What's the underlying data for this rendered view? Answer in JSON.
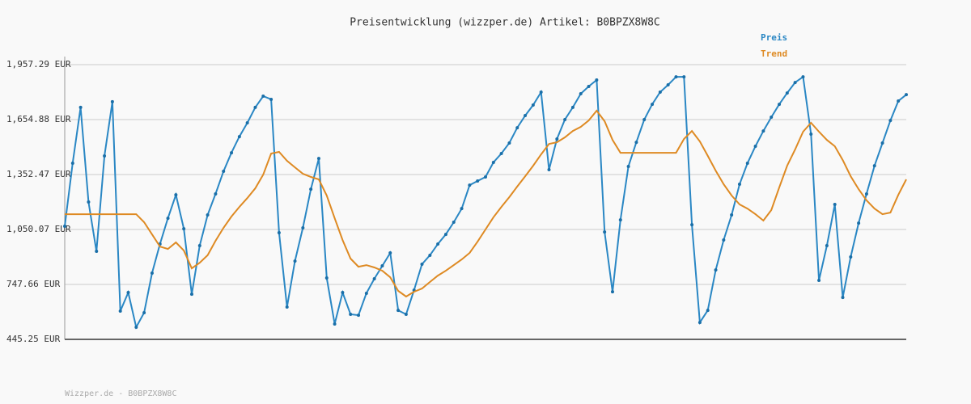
{
  "chart_data": {
    "type": "line",
    "title": "Preisentwicklung (wizzper.de) Artikel: B0BPZX8W8C",
    "footer": "Wizzper.de - B0BPZX8W8C",
    "ylim": [
      445.25,
      1957.29
    ],
    "yticks": [
      {
        "value": 445.25,
        "label": "445.25 EUR"
      },
      {
        "value": 747.66,
        "label": "747.66 EUR"
      },
      {
        "value": 1050.07,
        "label": "1,050.07 EUR"
      },
      {
        "value": 1352.47,
        "label": "1,352.47 EUR"
      },
      {
        "value": 1654.88,
        "label": "1,654.88 EUR"
      },
      {
        "value": 1957.29,
        "label": "1,957.29 EUR"
      }
    ],
    "grid": true,
    "legend": "top-right",
    "series": [
      {
        "name": "Preis",
        "color": "#2a87c4",
        "markers": true,
        "values": [
          1068,
          1415,
          1722,
          1201,
          930,
          1455,
          1753,
          601,
          703,
          512,
          592,
          810,
          970,
          1112,
          1241,
          1054,
          694,
          961,
          1130,
          1246,
          1370,
          1472,
          1561,
          1637,
          1722,
          1784,
          1766,
          1032,
          623,
          876,
          1059,
          1272,
          1441,
          783,
          530,
          703,
          583,
          578,
          699,
          779,
          850,
          921,
          605,
          583,
          716,
          859,
          908,
          970,
          1023,
          1090,
          1165,
          1294,
          1317,
          1339,
          1419,
          1468,
          1526,
          1610,
          1677,
          1735,
          1806,
          1379,
          1548,
          1655,
          1722,
          1797,
          1837,
          1873,
          1036,
          707,
          1103,
          1397,
          1530,
          1655,
          1739,
          1806,
          1846,
          1890,
          1890,
          1076,
          538,
          605,
          827,
          992,
          1130,
          1299,
          1415,
          1508,
          1592,
          1668,
          1739,
          1801,
          1859,
          1890,
          1575,
          770,
          961,
          1188,
          676,
          899,
          1085,
          1246,
          1401,
          1526,
          1650,
          1757,
          1792
        ]
      },
      {
        "name": "Trend",
        "color": "#de8a23",
        "markers": false,
        "values": [
          1134,
          1134,
          1134,
          1134,
          1134,
          1134,
          1134,
          1134,
          1134,
          1134,
          1090,
          1023,
          956,
          943,
          979,
          934,
          836,
          867,
          908,
          988,
          1059,
          1121,
          1174,
          1223,
          1277,
          1352,
          1468,
          1477,
          1428,
          1392,
          1357,
          1339,
          1326,
          1237,
          1112,
          992,
          890,
          845,
          854,
          841,
          823,
          787,
          712,
          681,
          707,
          725,
          761,
          796,
          823,
          854,
          885,
          921,
          983,
          1050,
          1117,
          1174,
          1228,
          1286,
          1343,
          1401,
          1463,
          1521,
          1530,
          1557,
          1592,
          1615,
          1650,
          1704,
          1646,
          1543,
          1472,
          1472,
          1472,
          1472,
          1472,
          1472,
          1472,
          1472,
          1548,
          1592,
          1535,
          1455,
          1374,
          1299,
          1237,
          1188,
          1165,
          1134,
          1099,
          1157,
          1281,
          1401,
          1490,
          1588,
          1637,
          1588,
          1543,
          1508,
          1432,
          1343,
          1272,
          1210,
          1165,
          1134,
          1143,
          1241,
          1326
        ]
      }
    ]
  }
}
